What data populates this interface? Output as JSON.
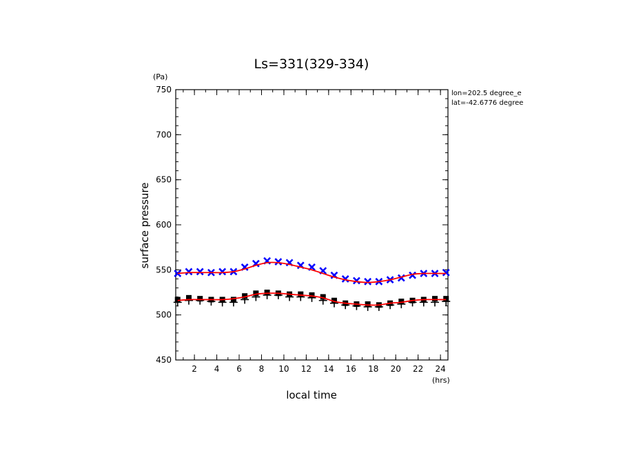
{
  "chart_data": {
    "type": "scatter",
    "title": "Ls=331(329-334)",
    "xlabel": "local time",
    "ylabel": "surface pressure",
    "x_unit": "(hrs)",
    "y_unit": "(Pa)",
    "xlim": [
      0.33,
      24.67
    ],
    "ylim": [
      450,
      750
    ],
    "x_ticks": [
      2,
      4,
      6,
      8,
      10,
      12,
      14,
      16,
      18,
      20,
      22,
      24
    ],
    "y_ticks": [
      450,
      500,
      550,
      600,
      650,
      700,
      750
    ],
    "annotations": [
      "lon=202.5 degree_e",
      "lat=-42.6776 degree"
    ],
    "grid": false,
    "hours": [
      0.5,
      1.5,
      2.5,
      3.5,
      4.5,
      5.5,
      6.5,
      7.5,
      8.5,
      9.5,
      10.5,
      11.5,
      12.5,
      13.5,
      14.5,
      15.5,
      16.5,
      17.5,
      18.5,
      19.5,
      20.5,
      21.5,
      22.5,
      23.5,
      24.5
    ],
    "series": [
      {
        "marker": "x",
        "color": "#0000ff",
        "values": [
          546,
          548,
          548,
          547,
          548,
          548,
          553,
          557,
          560,
          559,
          558,
          555,
          553,
          549,
          544,
          540,
          538,
          537,
          537,
          539,
          541,
          544,
          546,
          546,
          547
        ]
      },
      {
        "marker": "+",
        "color": "#000000",
        "values": [
          514,
          516,
          516,
          515,
          514,
          514,
          517,
          520,
          522,
          522,
          520,
          520,
          519,
          516,
          513,
          511,
          510,
          509,
          509,
          511,
          512,
          514,
          514,
          514,
          515
        ]
      },
      {
        "marker": "square",
        "color": "#000000",
        "values": [
          517,
          519,
          518,
          517,
          517,
          517,
          521,
          524,
          525,
          524,
          523,
          523,
          522,
          520,
          516,
          513,
          512,
          512,
          511,
          513,
          515,
          516,
          517,
          518,
          518
        ]
      },
      {
        "marker": "line",
        "color": "#ff0000",
        "values": [
          546,
          547,
          547,
          547,
          547,
          548,
          551,
          555,
          558,
          558,
          556,
          553,
          550,
          546,
          542,
          539,
          537,
          536,
          537,
          539,
          542,
          545,
          546,
          546,
          546
        ]
      },
      {
        "marker": "line",
        "color": "#ff0000",
        "values": [
          516,
          517,
          517,
          517,
          517,
          518,
          520,
          523,
          524,
          524,
          523,
          522,
          521,
          519,
          515,
          513,
          512,
          511,
          511,
          513,
          514,
          516,
          517,
          517,
          517
        ]
      }
    ]
  }
}
